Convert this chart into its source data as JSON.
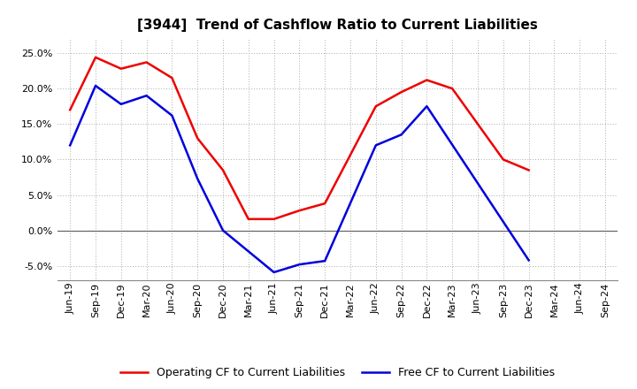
{
  "title": "[3944]  Trend of Cashflow Ratio to Current Liabilities",
  "x_labels": [
    "Jun-19",
    "Sep-19",
    "Dec-19",
    "Mar-20",
    "Jun-20",
    "Sep-20",
    "Dec-20",
    "Mar-21",
    "Jun-21",
    "Sep-21",
    "Dec-21",
    "Mar-22",
    "Jun-22",
    "Sep-22",
    "Dec-22",
    "Mar-23",
    "Jun-23",
    "Sep-23",
    "Dec-23",
    "Mar-24",
    "Jun-24",
    "Sep-24"
  ],
  "operating_cf_x": [
    0,
    1,
    2,
    3,
    4,
    5,
    6,
    7,
    8,
    9,
    10,
    12,
    13,
    14,
    15,
    16,
    17,
    18
  ],
  "operating_cf_y": [
    0.17,
    0.244,
    0.228,
    0.237,
    0.215,
    0.13,
    0.085,
    0.016,
    0.016,
    0.028,
    0.038,
    0.175,
    0.195,
    0.212,
    0.2,
    0.15,
    0.1,
    0.085
  ],
  "free_cf_x": [
    0,
    1,
    2,
    3,
    4,
    5,
    6,
    8,
    9,
    10,
    12,
    13,
    14,
    18
  ],
  "free_cf_y": [
    0.12,
    0.204,
    0.178,
    0.19,
    0.162,
    0.073,
    0.0,
    -0.059,
    -0.048,
    -0.043,
    0.12,
    0.135,
    0.175,
    -0.042
  ],
  "op_color": "#ee0000",
  "free_color": "#0000dd",
  "bg_color": "#ffffff",
  "grid_color": "#aaaaaa",
  "ylim": [
    -0.07,
    0.27
  ],
  "yticks": [
    -0.05,
    0.0,
    0.05,
    0.1,
    0.15,
    0.2,
    0.25
  ],
  "legend_op": "Operating CF to Current Liabilities",
  "legend_free": "Free CF to Current Liabilities",
  "title_fontsize": 11,
  "tick_fontsize": 8,
  "legend_fontsize": 9
}
